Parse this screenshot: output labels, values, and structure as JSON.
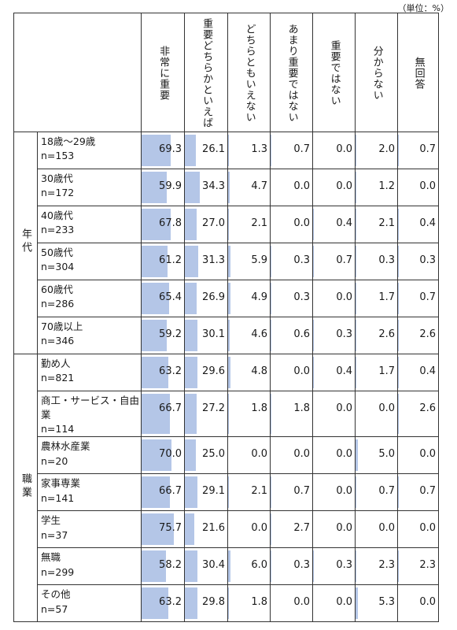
{
  "unit_note": "（単位：%）",
  "columns": [
    "非常に重要",
    "重要どちらかといえば",
    "どちらともいえない",
    "あまり重要ではない",
    "重要ではない",
    "分からない",
    "無回答"
  ],
  "groups": [
    {
      "label": "年代",
      "rows": [
        {
          "name": "18歳～29歳",
          "n": "n=153",
          "values": [
            69.3,
            26.1,
            1.3,
            0.7,
            0.0,
            2.0,
            0.7
          ]
        },
        {
          "name": "30歳代",
          "n": "n=172",
          "values": [
            59.9,
            34.3,
            4.7,
            0.0,
            0.0,
            1.2,
            0.0
          ]
        },
        {
          "name": "40歳代",
          "n": "n=233",
          "values": [
            67.8,
            27.0,
            2.1,
            0.0,
            0.4,
            2.1,
            0.4
          ]
        },
        {
          "name": "50歳代",
          "n": "n=304",
          "values": [
            61.2,
            31.3,
            5.9,
            0.3,
            0.7,
            0.3,
            0.3
          ]
        },
        {
          "name": "60歳代",
          "n": "n=286",
          "values": [
            65.4,
            26.9,
            4.9,
            0.3,
            0.0,
            1.7,
            0.7
          ]
        },
        {
          "name": "70歳以上",
          "n": "n=346",
          "values": [
            59.2,
            30.1,
            4.6,
            0.6,
            0.3,
            2.6,
            2.6
          ]
        }
      ]
    },
    {
      "label": "職業",
      "rows": [
        {
          "name": "勤め人",
          "n": "n=821",
          "values": [
            63.2,
            29.6,
            4.8,
            0.0,
            0.4,
            1.7,
            0.4
          ]
        },
        {
          "name": "商工・サービス・自由業",
          "n": "n=114",
          "values": [
            66.7,
            27.2,
            1.8,
            1.8,
            0.0,
            0.0,
            2.6
          ]
        },
        {
          "name": "農林水産業",
          "n": "n=20",
          "values": [
            70.0,
            25.0,
            0.0,
            0.0,
            0.0,
            5.0,
            0.0
          ]
        },
        {
          "name": "家事専業",
          "n": "n=141",
          "values": [
            66.7,
            29.1,
            2.1,
            0.7,
            0.0,
            0.7,
            0.7
          ]
        },
        {
          "name": "学生",
          "n": "n=37",
          "values": [
            75.7,
            21.6,
            0.0,
            2.7,
            0.0,
            0.0,
            0.0
          ]
        },
        {
          "name": "無職",
          "n": "n=299",
          "values": [
            58.2,
            30.4,
            6.0,
            0.3,
            0.3,
            2.3,
            2.3
          ]
        },
        {
          "name": "その他",
          "n": "n=57",
          "values": [
            63.2,
            29.8,
            1.8,
            0.0,
            0.0,
            5.3,
            0.0
          ]
        }
      ]
    }
  ],
  "chart_data": {
    "type": "table",
    "bar_color": "#b4c6e7",
    "value_range": [
      0,
      100
    ],
    "categories": [
      "非常に重要",
      "重要どちらかといえば",
      "どちらともいえない",
      "あまり重要ではない",
      "重要ではない",
      "分からない",
      "無回答"
    ]
  }
}
